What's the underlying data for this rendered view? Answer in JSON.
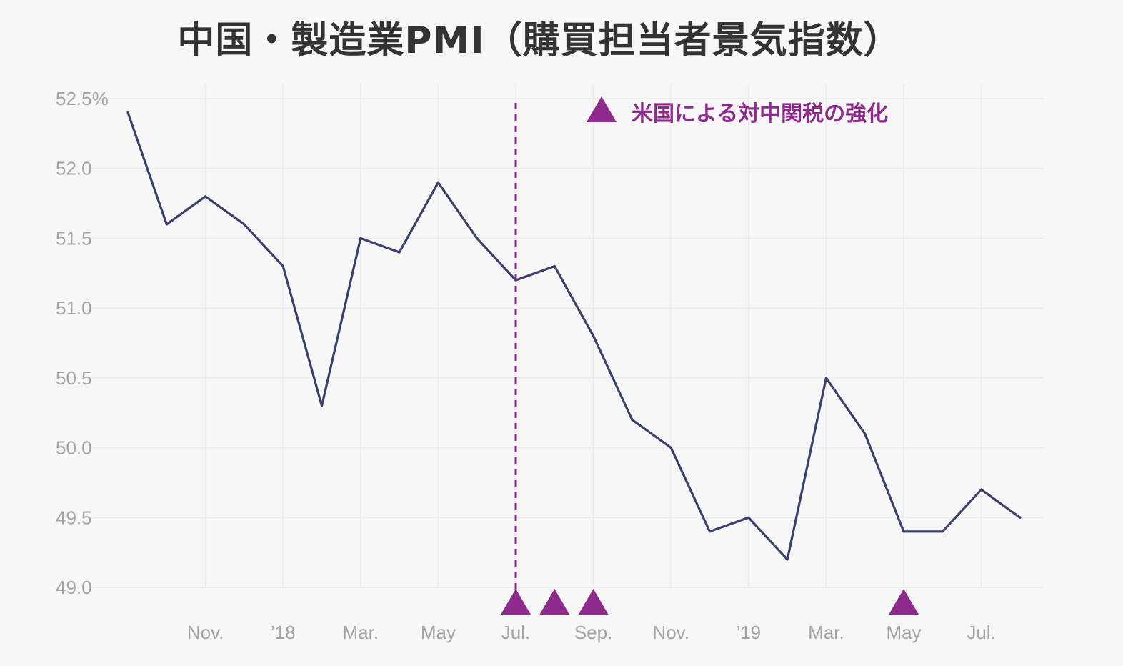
{
  "chart_data": {
    "type": "line",
    "title": "中国・製造業PMI（購買担当者景気指数）",
    "x": [
      "2017-09",
      "2017-10",
      "2017-11",
      "2017-12",
      "2018-01",
      "2018-02",
      "2018-03",
      "2018-04",
      "2018-05",
      "2018-06",
      "2018-07",
      "2018-08",
      "2018-09",
      "2018-10",
      "2018-11",
      "2018-12",
      "2019-01",
      "2019-02",
      "2019-03",
      "2019-04",
      "2019-05",
      "2019-06",
      "2019-07",
      "2019-08"
    ],
    "series": [
      {
        "values": [
          52.4,
          51.6,
          51.8,
          51.6,
          51.3,
          50.3,
          51.5,
          51.4,
          51.9,
          51.5,
          51.2,
          51.3,
          50.8,
          50.2,
          50.0,
          49.4,
          49.5,
          49.2,
          50.5,
          50.1,
          49.4,
          49.4,
          49.7,
          49.5
        ],
        "color": "#3b3f6b"
      }
    ],
    "ylim": [
      49.0,
      52.5
    ],
    "yticks": [
      49.0,
      49.5,
      50.0,
      50.5,
      51.0,
      51.5,
      52.0,
      52.5
    ],
    "ytick_labels": [
      "49.0",
      "49.5",
      "50.0",
      "50.5",
      "51.0",
      "51.5",
      "52.0",
      "52.5%"
    ],
    "xticks": [
      {
        "x": "2017-11",
        "label": "Nov."
      },
      {
        "x": "2018-01",
        "label": "’18"
      },
      {
        "x": "2018-03",
        "label": "Mar."
      },
      {
        "x": "2018-05",
        "label": "May"
      },
      {
        "x": "2018-07",
        "label": "Jul."
      },
      {
        "x": "2018-09",
        "label": "Sep."
      },
      {
        "x": "2018-11",
        "label": "Nov."
      },
      {
        "x": "2019-01",
        "label": "’19"
      },
      {
        "x": "2019-03",
        "label": "Mar."
      },
      {
        "x": "2019-05",
        "label": "May"
      },
      {
        "x": "2019-07",
        "label": "Jul."
      }
    ],
    "grid": true,
    "reference_line": {
      "x": "2018-07",
      "style": "dashed",
      "color": "#8e2a8c"
    },
    "markers": {
      "shape": "triangle",
      "color": "#8e2a8c",
      "x": [
        "2018-07",
        "2018-08",
        "2018-09",
        "2019-05"
      ]
    },
    "legend": {
      "position": "top-center",
      "entries": [
        {
          "symbol": "triangle",
          "label": "米国による対中関税の強化",
          "color": "#8e2a8c"
        }
      ]
    }
  }
}
